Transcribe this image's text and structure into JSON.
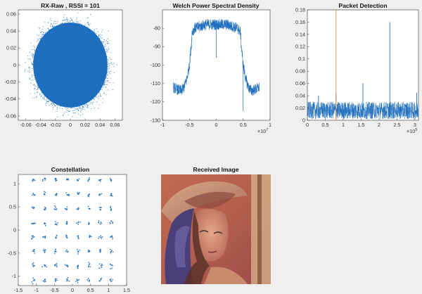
{
  "figure": {
    "background": "#efefef",
    "axes_color": "#333333",
    "plot_color": "#1f6fbf",
    "accent_color": "#d9822b"
  },
  "chart_data": [
    {
      "id": "rx-raw",
      "type": "scatter",
      "title": "RX-Raw , RSSI = 101",
      "xlim": [
        -0.07,
        0.07
      ],
      "ylim": [
        -0.065,
        0.065
      ],
      "xticks": [
        -0.06,
        -0.04,
        -0.02,
        0,
        0.02,
        0.04,
        0.06
      ],
      "yticks": [
        -0.06,
        -0.04,
        -0.02,
        0,
        0.02,
        0.04,
        0.06
      ],
      "xtick_labels": [
        "-0.06",
        "-0.04",
        "-0.02",
        "0",
        "0.02",
        "0.04",
        "0.06"
      ],
      "ytick_labels": [
        "-0.06",
        "-0.04",
        "-0.02",
        "0",
        "0.02",
        "0.04",
        "0.06"
      ],
      "cloud": {
        "center": [
          0,
          0
        ],
        "radius": 0.05,
        "outlier_extent": 0.065
      }
    },
    {
      "id": "welch-psd",
      "type": "line",
      "title": "Welch Power Spectral Density",
      "xlim": [
        -10000000,
        10000000
      ],
      "ylim": [
        -130,
        -70
      ],
      "xticks": [
        -10000000,
        -5000000,
        0,
        5000000,
        10000000
      ],
      "xtick_labels": [
        "-1",
        "-0.5",
        "0",
        "0.5",
        "1"
      ],
      "x_exponent_base": "×10",
      "x_exponent_power": "7",
      "yticks": [
        -130,
        -120,
        -110,
        -100,
        -90,
        -80
      ],
      "ytick_labels": [
        "-130",
        "-120",
        "-110",
        "-100",
        "-90",
        "-80"
      ],
      "profile": {
        "x": [
          -8000000,
          -7500000,
          -6500000,
          -6000000,
          -5500000,
          -5000000,
          -4600000,
          -4500000,
          -4000000,
          -3000000,
          -2000000,
          -1000000,
          0,
          1000000,
          2000000,
          3000000,
          4000000,
          4500000,
          4600000,
          5000000,
          5500000,
          6000000,
          6500000,
          7500000,
          8000000
        ],
        "y": [
          -112,
          -113,
          -114,
          -112,
          -108,
          -100,
          -88,
          -82,
          -80,
          -79,
          -78,
          -78,
          -78,
          -78,
          -78,
          -79,
          -80,
          -82,
          -88,
          -100,
          -108,
          -112,
          -114,
          -113,
          -112
        ]
      },
      "noise_amplitude": 3,
      "dips": [
        {
          "x": 0,
          "y": -96
        },
        {
          "x": 5000000,
          "y": -125
        }
      ]
    },
    {
      "id": "packet-detection",
      "type": "line",
      "title": "Packet Detection",
      "xlim": [
        0,
        310000
      ],
      "ylim": [
        0,
        0.18
      ],
      "xticks": [
        0,
        50000,
        100000,
        150000,
        200000,
        250000,
        300000
      ],
      "xtick_labels": [
        "0",
        "0.5",
        "1",
        "1.5",
        "2",
        "2.5",
        "3"
      ],
      "x_exponent_base": "×10",
      "x_exponent_power": "5",
      "yticks": [
        0,
        0.02,
        0.04,
        0.06,
        0.08,
        0.1,
        0.12,
        0.14,
        0.16,
        0.18
      ],
      "ytick_labels": [
        "0",
        "0.02",
        "0.04",
        "0.06",
        "0.08",
        "0.1",
        "0.12",
        "0.14",
        "0.16",
        "0.18"
      ],
      "noise_floor": {
        "min": 0.002,
        "max": 0.03
      },
      "peaks": [
        {
          "x": 31000,
          "y": 0.04
        },
        {
          "x": 80000,
          "y": 0.045
        },
        {
          "x": 155000,
          "y": 0.06
        },
        {
          "x": 230000,
          "y": 0.16
        },
        {
          "x": 305000,
          "y": 0.045
        }
      ],
      "marker_line": {
        "x": 80000
      }
    },
    {
      "id": "constellation",
      "type": "scatter",
      "title": "Constellation",
      "xlim": [
        -1.5,
        1.5
      ],
      "ylim": [
        -1.2,
        1.2
      ],
      "xticks": [
        -1.5,
        -1,
        -0.5,
        0,
        0.5,
        1,
        1.5
      ],
      "xtick_labels": [
        "-1.5",
        "-1",
        "-0.5",
        "0",
        "0.5",
        "1",
        "1.5"
      ],
      "yticks": [
        -1,
        -0.5,
        0,
        0.5,
        1
      ],
      "ytick_labels": [
        "-1",
        "-0.5",
        "0",
        "0.5",
        "1"
      ],
      "points_per_axis": [
        -1.08,
        -0.77,
        -0.46,
        -0.15,
        0.15,
        0.46,
        0.77,
        1.08
      ]
    },
    {
      "id": "received-image",
      "type": "image",
      "title": "Received Image"
    }
  ]
}
